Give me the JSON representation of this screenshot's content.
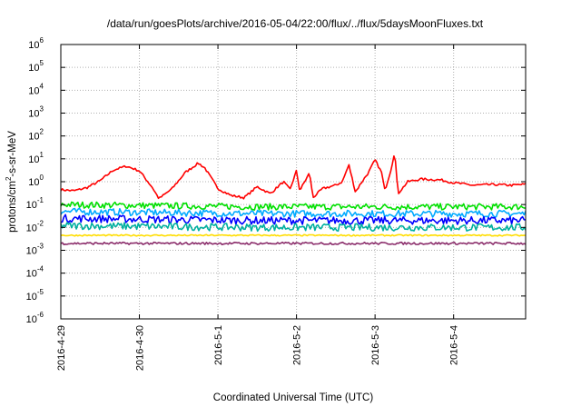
{
  "chart_data": {
    "type": "line",
    "title": "/data/run/goesPlots/archive/2016-05-04/22:00/flux/../flux/5daysMoonFluxes.txt",
    "xlabel": "Coordinated Universal Time (UTC)",
    "ylabel": {
      "prefix": "protons/cm",
      "sup": "2",
      "suffix": "-s-sr-MeV"
    },
    "y_scale": "log",
    "ylim": [
      1e-06,
      1000000.0
    ],
    "y_ticks": [
      {
        "base": "10",
        "exp": "-6",
        "value": 1e-06
      },
      {
        "base": "10",
        "exp": "-5",
        "value": 1e-05
      },
      {
        "base": "10",
        "exp": "-4",
        "value": 0.0001
      },
      {
        "base": "10",
        "exp": "-3",
        "value": 0.001
      },
      {
        "base": "10",
        "exp": "-2",
        "value": 0.01
      },
      {
        "base": "10",
        "exp": "-1",
        "value": 0.1
      },
      {
        "base": "10",
        "exp": "0",
        "value": 1
      },
      {
        "base": "10",
        "exp": "1",
        "value": 10
      },
      {
        "base": "10",
        "exp": "2",
        "value": 100
      },
      {
        "base": "10",
        "exp": "3",
        "value": 1000
      },
      {
        "base": "10",
        "exp": "4",
        "value": 10000
      },
      {
        "base": "10",
        "exp": "5",
        "value": 100000
      },
      {
        "base": "10",
        "exp": "6",
        "value": 1000000
      }
    ],
    "x_range": [
      "2016-04-29 00:00",
      "2016-05-04 22:00"
    ],
    "x_ticks": [
      {
        "label": "2016-4-29",
        "date": "2016-04-29"
      },
      {
        "label": "2016-4-30",
        "date": "2016-04-30"
      },
      {
        "label": "2016-5-1",
        "date": "2016-05-01"
      },
      {
        "label": "2016-5-2",
        "date": "2016-05-02"
      },
      {
        "label": "2016-5-3",
        "date": "2016-05-03"
      },
      {
        "label": "2016-5-4",
        "date": "2016-05-04"
      }
    ],
    "grid": true,
    "series": [
      {
        "color": "#ff0000",
        "jitter": 0.05,
        "values": [
          [
            "2016-04-29 00:00",
            0.45
          ],
          [
            "2016-04-29 04:00",
            0.4
          ],
          [
            "2016-04-29 08:00",
            0.55
          ],
          [
            "2016-04-29 12:00",
            1.1
          ],
          [
            "2016-04-29 16:00",
            3.2
          ],
          [
            "2016-04-29 20:00",
            4.8
          ],
          [
            "2016-04-30 00:00",
            3.0
          ],
          [
            "2016-04-30 04:00",
            0.55
          ],
          [
            "2016-04-30 06:00",
            0.18
          ],
          [
            "2016-04-30 10:00",
            0.5
          ],
          [
            "2016-04-30 14:00",
            2.5
          ],
          [
            "2016-04-30 18:00",
            6.5
          ],
          [
            "2016-04-30 20:00",
            4.0
          ],
          [
            "2016-05-01 00:00",
            0.5
          ],
          [
            "2016-05-01 04:00",
            0.25
          ],
          [
            "2016-05-01 08:00",
            0.2
          ],
          [
            "2016-05-01 12:00",
            0.6
          ],
          [
            "2016-05-01 16:00",
            0.3
          ],
          [
            "2016-05-01 20:00",
            1.0
          ],
          [
            "2016-05-01 22:00",
            0.45
          ],
          [
            "2016-05-02 00:00",
            3.0
          ],
          [
            "2016-05-02 01:00",
            0.4
          ],
          [
            "2016-05-02 04:00",
            2.5
          ],
          [
            "2016-05-02 05:00",
            0.2
          ],
          [
            "2016-05-02 08:00",
            0.5
          ],
          [
            "2016-05-02 12:00",
            0.7
          ],
          [
            "2016-05-02 14:00",
            1.0
          ],
          [
            "2016-05-02 16:00",
            5.5
          ],
          [
            "2016-05-02 18:00",
            0.35
          ],
          [
            "2016-05-02 20:00",
            1.0
          ],
          [
            "2016-05-02 22:00",
            2.5
          ],
          [
            "2016-05-03 00:00",
            9.0
          ],
          [
            "2016-05-03 02:00",
            2.5
          ],
          [
            "2016-05-03 03:00",
            0.4
          ],
          [
            "2016-05-03 05:00",
            4.0
          ],
          [
            "2016-05-03 06:00",
            22
          ],
          [
            "2016-05-03 07:00",
            0.3
          ],
          [
            "2016-05-03 10:00",
            1.0
          ],
          [
            "2016-05-03 14:00",
            1.3
          ],
          [
            "2016-05-03 20:00",
            1.2
          ],
          [
            "2016-05-04 00:00",
            0.9
          ],
          [
            "2016-05-04 06:00",
            0.7
          ],
          [
            "2016-05-04 12:00",
            0.75
          ],
          [
            "2016-05-04 18:00",
            0.7
          ],
          [
            "2016-05-04 22:00",
            0.78
          ]
        ]
      },
      {
        "color": "#00e000",
        "jitter": 0.14,
        "values": [
          [
            "2016-04-29 00:00",
            0.1
          ],
          [
            "2016-05-01 12:00",
            0.08
          ],
          [
            "2016-05-04 22:00",
            0.08
          ]
        ]
      },
      {
        "color": "#00aaff",
        "jitter": 0.15,
        "values": [
          [
            "2016-04-29 00:00",
            0.05
          ],
          [
            "2016-05-01 12:00",
            0.04
          ],
          [
            "2016-05-04 22:00",
            0.04
          ]
        ]
      },
      {
        "color": "#0000ff",
        "jitter": 0.17,
        "values": [
          [
            "2016-04-29 00:00",
            0.025
          ],
          [
            "2016-05-01 12:00",
            0.02
          ],
          [
            "2016-05-04 22:00",
            0.02
          ]
        ]
      },
      {
        "color": "#00b0a0",
        "jitter": 0.16,
        "values": [
          [
            "2016-04-29 00:00",
            0.012
          ],
          [
            "2016-05-01 12:00",
            0.01
          ],
          [
            "2016-05-04 22:00",
            0.01
          ]
        ]
      },
      {
        "color": "#ffdd00",
        "jitter": 0.03,
        "values": [
          [
            "2016-04-29 00:00",
            0.0045
          ],
          [
            "2016-05-04 22:00",
            0.0045
          ]
        ]
      },
      {
        "color": "#8b2d6b",
        "jitter": 0.05,
        "values": [
          [
            "2016-04-29 00:00",
            0.002
          ],
          [
            "2016-05-04 22:00",
            0.002
          ]
        ]
      }
    ]
  }
}
